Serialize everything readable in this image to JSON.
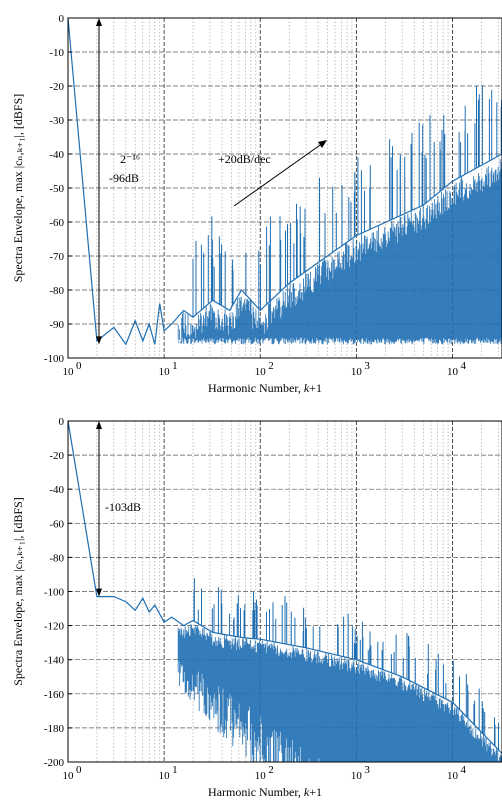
{
  "chart_data": [
    {
      "type": "line",
      "xscale": "log",
      "xlim": [
        1,
        32768
      ],
      "ylim": [
        -100,
        0
      ],
      "yticks": [
        0,
        -10,
        -20,
        -30,
        -40,
        -50,
        -60,
        -70,
        -80,
        -90,
        -100
      ],
      "xticks": [
        {
          "base": "10",
          "exp": "0"
        },
        {
          "base": "10",
          "exp": "1"
        },
        {
          "base": "10",
          "exp": "2"
        },
        {
          "base": "10",
          "exp": "3"
        },
        {
          "base": "10",
          "exp": "4"
        }
      ],
      "xlabel": {
        "text": "Harmonic Number, ",
        "italic": "k",
        "suffix": "+1"
      },
      "ylabel": "Spectra Envelope, max |cₙ,ₖ₊₁|, [dBFS]",
      "grid": true,
      "series_color": "#1f6fb3",
      "series": [
        {
          "x": [
            1,
            2,
            3,
            4,
            5,
            6,
            7,
            8,
            9,
            10,
            12,
            16,
            20,
            32,
            48,
            64,
            100,
            200,
            500,
            1000,
            5000,
            10000,
            32768
          ],
          "y": [
            0,
            -95,
            -91,
            -96,
            -89,
            -95,
            -90,
            -96,
            -84,
            -92,
            -90,
            -86,
            -88,
            -83,
            -86,
            -80,
            -86,
            -78,
            -70,
            -64,
            -55,
            -48,
            -40
          ]
        }
      ],
      "annotations": [
        {
          "text": "2⁻¹⁶",
          "role": "bits-label"
        },
        {
          "text": "-96dB",
          "role": "range-label"
        },
        {
          "text": "+20dB/dec",
          "role": "slope-label"
        }
      ]
    },
    {
      "type": "line",
      "xscale": "log",
      "xlim": [
        1,
        32768
      ],
      "ylim": [
        -200,
        0
      ],
      "yticks": [
        0,
        -20,
        -40,
        -60,
        -80,
        -100,
        -120,
        -140,
        -160,
        -180,
        -200
      ],
      "xticks": [
        {
          "base": "10",
          "exp": "0"
        },
        {
          "base": "10",
          "exp": "1"
        },
        {
          "base": "10",
          "exp": "2"
        },
        {
          "base": "10",
          "exp": "3"
        },
        {
          "base": "10",
          "exp": "4"
        }
      ],
      "xlabel": {
        "text": "Harmonic Number, ",
        "italic": "k",
        "suffix": "+1"
      },
      "ylabel": "Spectra Envelope, max |cₙ,ₖ₊₁|, [dBFS]",
      "grid": true,
      "series_color": "#1f6fb3",
      "series": [
        {
          "x": [
            1,
            2,
            3,
            4,
            5,
            6,
            7,
            8,
            10,
            12,
            16,
            20,
            32,
            64,
            100,
            300,
            1000,
            3000,
            10000,
            32768
          ],
          "y": [
            0,
            -103,
            -103,
            -106,
            -111,
            -104,
            -112,
            -108,
            -118,
            -115,
            -120,
            -117,
            -124,
            -127,
            -128,
            -133,
            -140,
            -150,
            -165,
            -195
          ]
        }
      ],
      "annotations": [
        {
          "text": "-103dB",
          "role": "range-label"
        }
      ]
    }
  ]
}
